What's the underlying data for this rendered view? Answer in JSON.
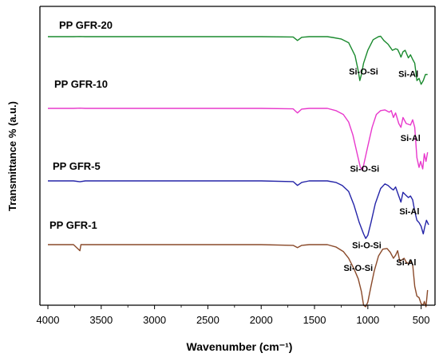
{
  "chart_data": {
    "type": "line",
    "title": "",
    "xlabel": "Wavenumber (cm⁻¹)",
    "ylabel": "Transmittance % (a.u.)",
    "xlim": [
      4000,
      400
    ],
    "x_reversed": true,
    "x_ticks": [
      "4000",
      "3500",
      "3000",
      "2500",
      "2000",
      "1500",
      "1000",
      "500"
    ],
    "grid": false,
    "series": [
      {
        "name": "PP GFR-20",
        "color": "#1a8a2e",
        "baseline": 0.0,
        "points": [
          [
            4000,
            0
          ],
          [
            3760,
            0
          ],
          [
            3700,
            0.2
          ],
          [
            3650,
            0
          ],
          [
            2000,
            0
          ],
          [
            1700,
            -0.4
          ],
          [
            1660,
            -5
          ],
          [
            1620,
            -0.8
          ],
          [
            1550,
            0
          ],
          [
            1380,
            0
          ],
          [
            1330,
            -1
          ],
          [
            1250,
            -3
          ],
          [
            1180,
            -8
          ],
          [
            1120,
            -25
          ],
          [
            1090,
            -45
          ],
          [
            1075,
            -58
          ],
          [
            1060,
            -50
          ],
          [
            1040,
            -35
          ],
          [
            1000,
            -18
          ],
          [
            950,
            -4
          ],
          [
            900,
            0
          ],
          [
            880,
            0.5
          ],
          [
            850,
            -5
          ],
          [
            810,
            -10
          ],
          [
            790,
            -14
          ],
          [
            770,
            -18
          ],
          [
            740,
            -16
          ],
          [
            720,
            -17
          ],
          [
            700,
            -23
          ],
          [
            690,
            -27
          ],
          [
            670,
            -20
          ],
          [
            650,
            -18
          ],
          [
            620,
            -28
          ],
          [
            600,
            -24
          ],
          [
            580,
            -30
          ],
          [
            560,
            -35
          ],
          [
            540,
            -58
          ],
          [
            520,
            -55
          ],
          [
            500,
            -63
          ],
          [
            480,
            -58
          ],
          [
            460,
            -50
          ],
          [
            440,
            -50
          ]
        ]
      },
      {
        "name": "PP GFR-10",
        "color": "#e838cc",
        "baseline": 0.0,
        "points": [
          [
            4000,
            0
          ],
          [
            3760,
            0
          ],
          [
            3700,
            0.3
          ],
          [
            3650,
            0
          ],
          [
            2000,
            0
          ],
          [
            1700,
            -0.6
          ],
          [
            1660,
            -6
          ],
          [
            1620,
            -1
          ],
          [
            1550,
            0
          ],
          [
            1380,
            0
          ],
          [
            1300,
            -3
          ],
          [
            1230,
            -8
          ],
          [
            1180,
            -18
          ],
          [
            1140,
            -35
          ],
          [
            1100,
            -60
          ],
          [
            1070,
            -78
          ],
          [
            1050,
            -82
          ],
          [
            1035,
            -72
          ],
          [
            1000,
            -50
          ],
          [
            960,
            -25
          ],
          [
            920,
            -8
          ],
          [
            880,
            -3
          ],
          [
            840,
            -2
          ],
          [
            800,
            -5
          ],
          [
            780,
            -3
          ],
          [
            760,
            -12
          ],
          [
            740,
            -6
          ],
          [
            710,
            -20
          ],
          [
            690,
            -25
          ],
          [
            670,
            -12
          ],
          [
            640,
            -20
          ],
          [
            600,
            -22
          ],
          [
            580,
            -15
          ],
          [
            560,
            -25
          ],
          [
            540,
            -65
          ],
          [
            520,
            -78
          ],
          [
            505,
            -70
          ],
          [
            485,
            -80
          ],
          [
            470,
            -60
          ],
          [
            455,
            -70
          ],
          [
            440,
            -58
          ]
        ]
      },
      {
        "name": "PP GFR-5",
        "color": "#2424a8",
        "baseline": 0.0,
        "points": [
          [
            4000,
            0
          ],
          [
            3760,
            0
          ],
          [
            3700,
            -1.2
          ],
          [
            3650,
            0
          ],
          [
            2000,
            0
          ],
          [
            1700,
            -1
          ],
          [
            1660,
            -6
          ],
          [
            1620,
            -2
          ],
          [
            1550,
            0
          ],
          [
            1380,
            0
          ],
          [
            1300,
            -2
          ],
          [
            1240,
            -6
          ],
          [
            1180,
            -14
          ],
          [
            1130,
            -32
          ],
          [
            1080,
            -55
          ],
          [
            1040,
            -70
          ],
          [
            1020,
            -76
          ],
          [
            1000,
            -72
          ],
          [
            970,
            -55
          ],
          [
            930,
            -30
          ],
          [
            880,
            -10
          ],
          [
            840,
            -4
          ],
          [
            810,
            -6
          ],
          [
            780,
            -10
          ],
          [
            760,
            -12
          ],
          [
            740,
            -8
          ],
          [
            710,
            -20
          ],
          [
            690,
            -28
          ],
          [
            670,
            -15
          ],
          [
            650,
            -18
          ],
          [
            620,
            -22
          ],
          [
            600,
            -20
          ],
          [
            580,
            -25
          ],
          [
            560,
            -40
          ],
          [
            540,
            -52
          ],
          [
            520,
            -55
          ],
          [
            500,
            -60
          ],
          [
            480,
            -70
          ],
          [
            465,
            -60
          ],
          [
            450,
            -52
          ],
          [
            430,
            -58
          ]
        ]
      },
      {
        "name": "PP GFR-1",
        "color": "#8a4a2a",
        "baseline": 0.0,
        "points": [
          [
            4000,
            0
          ],
          [
            3760,
            0
          ],
          [
            3700,
            -8
          ],
          [
            3690,
            0
          ],
          [
            3650,
            0
          ],
          [
            2000,
            0
          ],
          [
            1700,
            -1
          ],
          [
            1660,
            -4
          ],
          [
            1620,
            -1
          ],
          [
            1550,
            0
          ],
          [
            1380,
            0
          ],
          [
            1300,
            -3
          ],
          [
            1230,
            -9
          ],
          [
            1180,
            -18
          ],
          [
            1130,
            -32
          ],
          [
            1090,
            -45
          ],
          [
            1060,
            -62
          ],
          [
            1040,
            -80
          ],
          [
            1020,
            -82
          ],
          [
            1000,
            -76
          ],
          [
            970,
            -55
          ],
          [
            940,
            -35
          ],
          [
            900,
            -15
          ],
          [
            860,
            -6
          ],
          [
            820,
            -5
          ],
          [
            790,
            -10
          ],
          [
            760,
            -18
          ],
          [
            740,
            -14
          ],
          [
            720,
            -8
          ],
          [
            700,
            -22
          ],
          [
            680,
            -20
          ],
          [
            660,
            -18
          ],
          [
            640,
            -23
          ],
          [
            620,
            -25
          ],
          [
            600,
            -22
          ],
          [
            580,
            -26
          ],
          [
            560,
            -55
          ],
          [
            540,
            -68
          ],
          [
            520,
            -70
          ],
          [
            500,
            -78
          ],
          [
            480,
            -80
          ],
          [
            470,
            -75
          ],
          [
            455,
            -82
          ],
          [
            440,
            -60
          ]
        ]
      }
    ],
    "series_labels": [
      {
        "text": "PP GFR-20",
        "series": 0
      },
      {
        "text": "PP GFR-10",
        "series": 1
      },
      {
        "text": "PP GFR-5",
        "series": 2
      },
      {
        "text": "PP GFR-1",
        "series": 3
      }
    ],
    "annotations": [
      {
        "text": "Si-Al",
        "series": 0,
        "x": 620
      },
      {
        "text": "Si-O-Si",
        "series": 0,
        "x": 1040
      },
      {
        "text": "Si-Al",
        "series": 1,
        "x": 600
      },
      {
        "text": "Si-O-Si",
        "series": 1,
        "x": 1030
      },
      {
        "text": "Si-Al",
        "series": 2,
        "x": 610
      },
      {
        "text": "Si-O-Si",
        "series": 2,
        "x": 1010
      },
      {
        "text": "Si-O-Si",
        "series": 3,
        "x": 1090
      },
      {
        "text": "Si-Al",
        "series": 3,
        "x": 640
      }
    ]
  }
}
